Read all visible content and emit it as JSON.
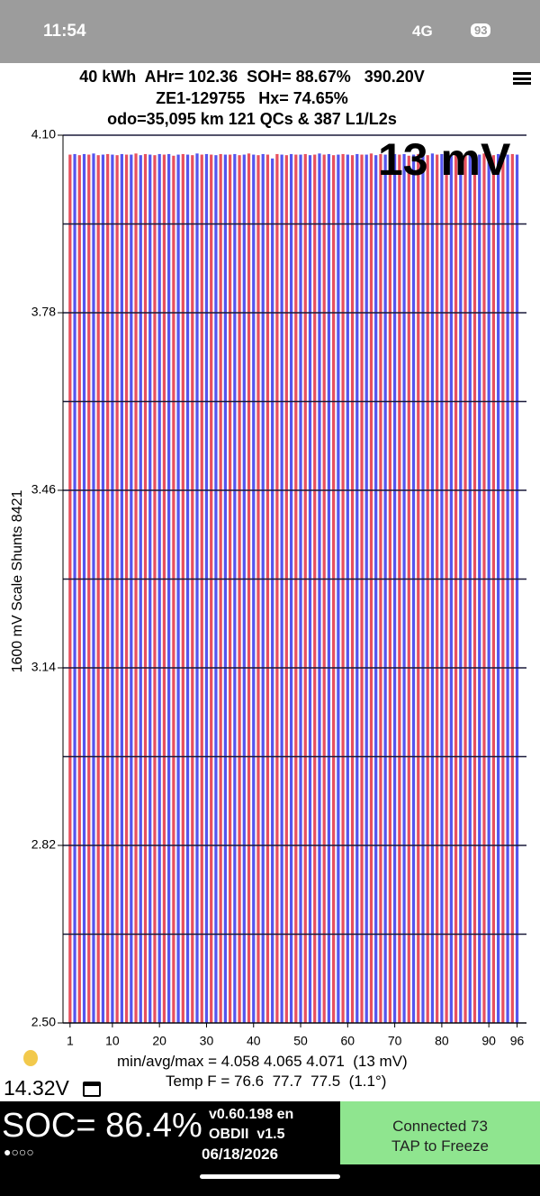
{
  "status_bar": {
    "time": "11:54",
    "network": "4G",
    "battery": "93"
  },
  "header": {
    "line1": "40 kWh  AHr= 102.36  SOH= 88.67%   390.20V",
    "line2": "ZE1-129755   Hx= 74.65%",
    "line3": "odo=35,095 km 121 QCs & 387 L1/L2s"
  },
  "chart_data": {
    "type": "bar",
    "y_label": "1600 mV Scale Shunts 8421",
    "annotation": "13 mV",
    "x": [
      1,
      2,
      3,
      4,
      5,
      6,
      7,
      8,
      9,
      10,
      11,
      12,
      13,
      14,
      15,
      16,
      17,
      18,
      19,
      20,
      21,
      22,
      23,
      24,
      25,
      26,
      27,
      28,
      29,
      30,
      31,
      32,
      33,
      34,
      35,
      36,
      37,
      38,
      39,
      40,
      41,
      42,
      43,
      44,
      45,
      46,
      47,
      48,
      49,
      50,
      51,
      52,
      53,
      54,
      55,
      56,
      57,
      58,
      59,
      60,
      61,
      62,
      63,
      64,
      65,
      66,
      67,
      68,
      69,
      70,
      71,
      72,
      73,
      74,
      75,
      76,
      77,
      78,
      79,
      80,
      81,
      82,
      83,
      84,
      85,
      86,
      87,
      88,
      89,
      90,
      91,
      92,
      93,
      94,
      95,
      96
    ],
    "values": [
      4.065,
      4.066,
      4.064,
      4.066,
      4.065,
      4.067,
      4.064,
      4.065,
      4.066,
      4.065,
      4.064,
      4.066,
      4.065,
      4.065,
      4.067,
      4.064,
      4.066,
      4.065,
      4.064,
      4.066,
      4.065,
      4.066,
      4.063,
      4.065,
      4.066,
      4.065,
      4.064,
      4.067,
      4.065,
      4.066,
      4.065,
      4.064,
      4.066,
      4.065,
      4.065,
      4.066,
      4.064,
      4.065,
      4.067,
      4.065,
      4.064,
      4.066,
      4.065,
      4.058,
      4.066,
      4.065,
      4.064,
      4.066,
      4.065,
      4.065,
      4.066,
      4.064,
      4.065,
      4.067,
      4.065,
      4.066,
      4.064,
      4.065,
      4.066,
      4.065,
      4.064,
      4.066,
      4.065,
      4.065,
      4.067,
      4.064,
      4.066,
      4.065,
      4.071,
      4.066,
      4.065,
      4.066,
      4.063,
      4.065,
      4.066,
      4.065,
      4.064,
      4.067,
      4.065,
      4.066,
      4.065,
      4.064,
      4.066,
      4.065,
      4.065,
      4.066,
      4.064,
      4.065,
      4.067,
      4.065,
      4.064,
      4.066,
      4.065,
      4.065,
      4.066,
      4.065
    ],
    "bar_colors": [
      "#e8505e",
      "#5555ee"
    ],
    "xlim": [
      -0.5,
      98
    ],
    "xticks": [
      1,
      10,
      20,
      30,
      40,
      50,
      60,
      70,
      80,
      90,
      96
    ],
    "ylim": [
      2.5,
      4.1
    ],
    "yticks": [
      {
        "value": 4.1,
        "label": "4.10"
      },
      3.78,
      3.46,
      3.14,
      2.82,
      {
        "value": 2.5,
        "label": "2.50"
      }
    ],
    "grid_lines": [
      4.1,
      3.94,
      3.78,
      3.62,
      3.46,
      3.3,
      3.14,
      2.98,
      2.82,
      2.66,
      2.5
    ],
    "grid": true,
    "stats_line": "min/avg/max = 4.058 4.065 4.071  (13 mV)",
    "temp_line": "Temp F = 76.6  77.7  77.5  (1.1°)"
  },
  "footer": {
    "voltage": "14.32V",
    "soc": "SOC= 86.4%",
    "version": "v0.60.198 en",
    "obd": "OBDII  v1.5",
    "date": "06/18/2026",
    "button_line1": "Connected 73",
    "button_line2": "TAP to Freeze"
  }
}
